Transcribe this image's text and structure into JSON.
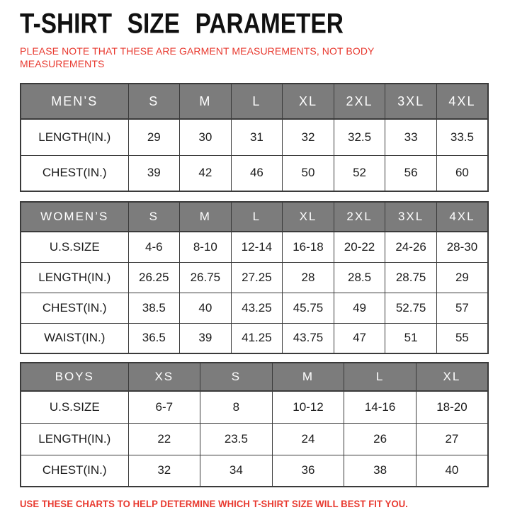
{
  "page": {
    "title": "T-SHIRT SIZE PARAMETER",
    "note": "PLEASE NOTE THAT THESE ARE GARMENT MEASUREMENTS, NOT BODY\nMEASUREMENTS",
    "footer": "USE THESE CHARTS TO HELP DETERMINE WHICH T-SHIRT SIZE WILL BEST FIT YOU."
  },
  "colors": {
    "header_bg": "#7c7c7c",
    "header_text": "#ffffff",
    "border": "#3a3a3a",
    "text": "#1c1c1c",
    "accent_red": "#e8392f",
    "page_bg": "#ffffff"
  },
  "tables": [
    {
      "name": "mens",
      "header": [
        "MEN’S",
        "S",
        "M",
        "L",
        "XL",
        "2XL",
        "3XL",
        "4XL"
      ],
      "rows": [
        [
          "LENGTH(IN.)",
          "29",
          "30",
          "31",
          "32",
          "32.5",
          "33",
          "33.5"
        ],
        [
          "CHEST(IN.)",
          "39",
          "42",
          "46",
          "50",
          "52",
          "56",
          "60"
        ]
      ]
    },
    {
      "name": "womens",
      "header": [
        "WOMEN’S",
        "S",
        "M",
        "L",
        "XL",
        "2XL",
        "3XL",
        "4XL"
      ],
      "rows": [
        [
          "U.S.SIZE",
          "4-6",
          "8-10",
          "12-14",
          "16-18",
          "20-22",
          "24-26",
          "28-30"
        ],
        [
          "LENGTH(IN.)",
          "26.25",
          "26.75",
          "27.25",
          "28",
          "28.5",
          "28.75",
          "29"
        ],
        [
          "CHEST(IN.)",
          "38.5",
          "40",
          "43.25",
          "45.75",
          "49",
          "52.75",
          "57"
        ],
        [
          "WAIST(IN.)",
          "36.5",
          "39",
          "41.25",
          "43.75",
          "47",
          "51",
          "55"
        ]
      ]
    },
    {
      "name": "boys",
      "header": [
        "BOYS",
        "XS",
        "S",
        "M",
        "L",
        "XL"
      ],
      "rows": [
        [
          "U.S.SIZE",
          "6-7",
          "8",
          "10-12",
          "14-16",
          "18-20"
        ],
        [
          "LENGTH(IN.)",
          "22",
          "23.5",
          "24",
          "26",
          "27"
        ],
        [
          "CHEST(IN.)",
          "32",
          "34",
          "36",
          "38",
          "40"
        ]
      ]
    }
  ]
}
